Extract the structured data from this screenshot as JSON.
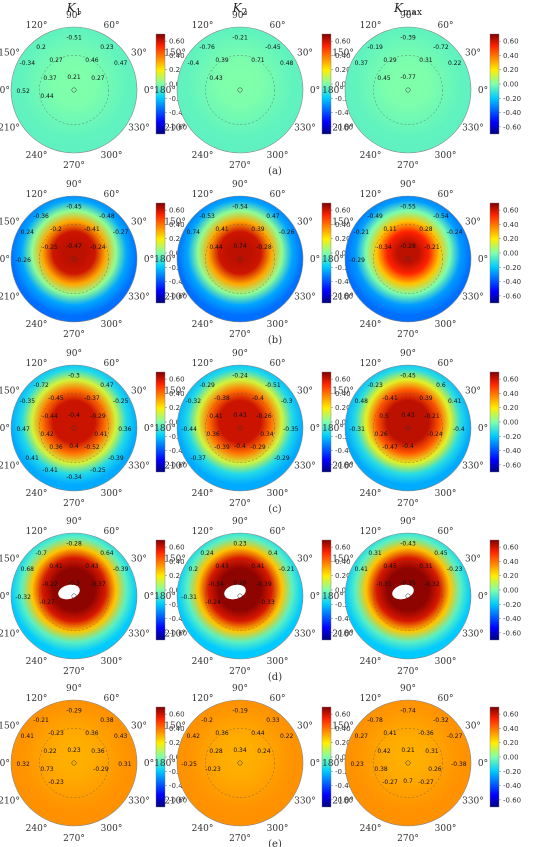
{
  "columns": [
    {
      "symbol": "K",
      "sub": "1"
    },
    {
      "symbol": "K",
      "sub": "2"
    },
    {
      "symbol": "K",
      "sub": "max"
    }
  ],
  "angle_labels": [
    "90°",
    "60°",
    "30°",
    "0°",
    "330°",
    "300°",
    "270°",
    "240°",
    "210°",
    "180°",
    "150°",
    "120°"
  ],
  "colorbar": {
    "ticks": [
      "0.60",
      "0.40",
      "0.20",
      "0.00",
      "-0.20",
      "-0.40",
      "-0.60"
    ],
    "range": [
      -0.7,
      0.7
    ]
  },
  "row_captions": [
    "(a)",
    "(b)",
    "(c)",
    "(d)",
    "(e)"
  ],
  "chart_data": {
    "type": "heatmap",
    "coordinate": "polar",
    "rows": [
      {
        "label": "(a)",
        "base": -0.05,
        "panels": [
          {
            "name": "K1",
            "hot": 0.0,
            "hotR": 0.3,
            "annotations": [
              "-0.51",
              "0.2",
              "0.23",
              "-0.34",
              "0.27",
              "0.46",
              "0.47",
              "0.37",
              "0.21",
              "0.27",
              "0.52",
              "0.44"
            ]
          },
          {
            "name": "K2",
            "hot": 0.0,
            "hotR": 0.3,
            "annotations": [
              "-0.21",
              "-0.76",
              "-0.45",
              "-0.4",
              "0.39",
              "0.71",
              "0.48",
              "0.43"
            ]
          },
          {
            "name": "Kmax",
            "hot": 0.0,
            "hotR": 0.3,
            "annotations": [
              "-0.39",
              "-0.19",
              "-0.72",
              "0.37",
              "0.29",
              "0.31",
              "0.22",
              "0.45",
              "-0.77"
            ]
          }
        ]
      },
      {
        "label": "(b)",
        "base": -0.35,
        "panels": [
          {
            "name": "K1",
            "hot": 0.62,
            "hotR": 0.32,
            "annotations": [
              "-0.45",
              "-0.36",
              "-0.48",
              "0.24",
              "-0.2",
              "-0.41",
              "-0.27",
              "-0.25",
              "-0.47",
              "-0.24",
              "-0.26"
            ]
          },
          {
            "name": "K2",
            "hot": 0.62,
            "hotR": 0.32,
            "annotations": [
              "-0.54",
              "-0.53",
              "0.47",
              "0.74",
              "0.41",
              "0.39",
              "-0.26",
              "0.44",
              "0.74",
              "-0.28"
            ]
          },
          {
            "name": "Kmax",
            "hot": 0.62,
            "hotR": 0.28,
            "annotations": [
              "-0.55",
              "-0.49",
              "-0.54",
              "-0.21",
              "0.11",
              "0.28",
              "-0.24",
              "-0.34",
              "-0.28",
              "-0.21",
              "-0.29"
            ]
          }
        ]
      },
      {
        "label": "(c)",
        "base": -0.25,
        "panels": [
          {
            "name": "K1",
            "hot": 0.6,
            "hotR": 0.38,
            "annotations": [
              "-0.3",
              "-0.72",
              "0.47",
              "-0.35",
              "-0.45",
              "-0.37",
              "-0.25",
              "-0.44",
              "-0.4",
              "-0.29",
              "0.47",
              "0.42",
              "0.41",
              "0.36",
              "0.36",
              "0.4",
              "-0.52",
              "0.41",
              "-0.39",
              "-0.41",
              "-0.25",
              "-0.34"
            ]
          },
          {
            "name": "K2",
            "hot": 0.6,
            "hotR": 0.38,
            "annotations": [
              "-0.24",
              "-0.29",
              "-0.51",
              "-0.32",
              "-0.38",
              "-0.4",
              "-0.3",
              "0.41",
              "0.43",
              "-0.26",
              "-0.44",
              "0.36",
              "0.34",
              "-0.35",
              "-0.39",
              "-0.4",
              "-0.29",
              "-0.37",
              "-0.29"
            ]
          },
          {
            "name": "Kmax",
            "hot": 0.62,
            "hotR": 0.4,
            "annotations": [
              "-0.45",
              "-0.23",
              "0.6",
              "0.48",
              "-0.41",
              "0.39",
              "0.41",
              "0.5",
              "0.43",
              "-0.21",
              "-0.31",
              "0.26",
              "-0.24",
              "-0.4",
              "-0.47",
              "-0.4"
            ]
          }
        ]
      },
      {
        "label": "(d)",
        "base": -0.2,
        "panels": [
          {
            "name": "K1",
            "hot": 0.68,
            "hotR": 0.45,
            "hole": true,
            "annotations": [
              "-0.28",
              "-0.7",
              "0.64",
              "0.68",
              "0.41",
              "0.43",
              "-0.39",
              "-0.22",
              "-0.3",
              "-0.37",
              "-0.32",
              "-0.27"
            ]
          },
          {
            "name": "K2",
            "hot": 0.68,
            "hotR": 0.45,
            "hole": true,
            "annotations": [
              "0.23",
              "0.24",
              "0.4",
              "0.2",
              "0.43",
              "0.41",
              "-0.21",
              "-0.34",
              "0.29",
              "-0.39",
              "-0.31",
              "-0.24",
              "-0.33"
            ]
          },
          {
            "name": "Kmax",
            "hot": 0.68,
            "hotR": 0.45,
            "hole": true,
            "annotations": [
              "-0.43",
              "0.31",
              "0.45",
              "0.41",
              "0.45",
              "0.31",
              "-0.23",
              "-0.31",
              "-0.35",
              "-0.32"
            ]
          }
        ]
      },
      {
        "label": "(e)",
        "base": 0.35,
        "panels": [
          {
            "name": "K1",
            "hot": 0.3,
            "hotR": 0.25,
            "annotations": [
              "-0.29",
              "-0.21",
              "0.38",
              "0.41",
              "-0.23",
              "0.36",
              "0.43",
              "0.22",
              "0.23",
              "0.36",
              "0.32",
              "0.73",
              "-0.29",
              "0.31",
              "-0.23"
            ]
          },
          {
            "name": "K2",
            "hot": 0.3,
            "hotR": 0.25,
            "annotations": [
              "-0.19",
              "-0.2",
              "0.33",
              "0.42",
              "0.36",
              "0.44",
              "0.22",
              "0.28",
              "0.34",
              "0.24",
              "-0.25",
              "-0.23"
            ]
          },
          {
            "name": "Kmax",
            "hot": 0.3,
            "hotR": 0.25,
            "annotations": [
              "-0.74",
              "-0.78",
              "-0.32",
              "0.27",
              "0.41",
              "-0.36",
              "-0.27",
              "0.42",
              "0.21",
              "0.31",
              "0.23",
              "0.38",
              "0.26",
              "-0.38",
              "-0.27",
              "0.7",
              "-0.27"
            ]
          }
        ]
      }
    ]
  }
}
